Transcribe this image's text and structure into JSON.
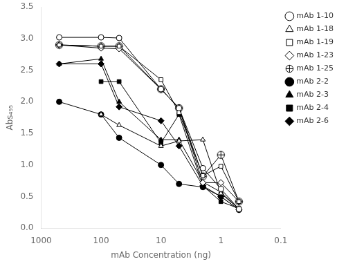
{
  "chart_data": {
    "type": "line",
    "xlabel": "mAb Concentration (ng)",
    "ylabel": "Abs₄₉₅",
    "log": "x",
    "xlim": [
      1000,
      0.1
    ],
    "xticks": [
      1000,
      100,
      10,
      1,
      0.1
    ],
    "ylim": [
      0,
      3.5
    ],
    "yticks": [
      {
        "value": 0,
        "label": "0.0"
      },
      0.5,
      {
        "value": 1.0,
        "label": "1.0"
      },
      1.5,
      {
        "value": 2.0,
        "label": "2.0"
      },
      2.5,
      {
        "value": 3.0,
        "label": "3.0"
      },
      3.5
    ],
    "grid": false,
    "legend": "upper right",
    "series": [
      {
        "name": "mAb 1-10",
        "color": "#000000",
        "marker": "circle_open",
        "x": [
          500,
          100,
          50,
          10,
          5,
          2,
          1,
          0.5
        ],
        "values": [
          3.02,
          3.02,
          3.01,
          2.2,
          1.9,
          0.95,
          0.62,
          0.3
        ]
      },
      {
        "name": "mAb 1-18",
        "color": "#000000",
        "marker": "triangle_open",
        "x": [
          100,
          50,
          10,
          5,
          2,
          1,
          0.5
        ],
        "values": [
          1.8,
          1.63,
          1.3,
          1.38,
          1.4,
          0.55,
          0.3
        ]
      },
      {
        "name": "mAb 1-19",
        "color": "#000000",
        "marker": "square_open",
        "x": [
          500,
          100,
          50,
          10,
          5,
          2,
          1,
          0.5
        ],
        "values": [
          2.9,
          2.88,
          2.88,
          2.35,
          1.83,
          0.83,
          0.98,
          0.42
        ]
      },
      {
        "name": "mAb 1-23",
        "color": "#000000",
        "marker": "diamond_open",
        "x": [
          500,
          100,
          50,
          10,
          5,
          2,
          1,
          0.5
        ],
        "values": [
          2.9,
          2.85,
          2.84,
          2.2,
          1.9,
          0.72,
          0.72,
          0.42
        ]
      },
      {
        "name": "mAb 1-25",
        "color": "#000000",
        "marker": "oplus_open",
        "x": [
          500,
          100,
          50,
          10,
          5,
          2,
          1,
          0.5
        ],
        "values": [
          2.9,
          2.88,
          2.88,
          2.2,
          1.9,
          0.82,
          1.16,
          0.42
        ]
      },
      {
        "name": "mAb 2-2",
        "color": "#000000",
        "marker": "circle_filled",
        "x": [
          500,
          100,
          50,
          10,
          5,
          2,
          1,
          0.5
        ],
        "values": [
          2.0,
          1.8,
          1.43,
          1.0,
          0.7,
          0.65,
          0.5,
          0.29
        ]
      },
      {
        "name": "mAb 2-3",
        "color": "#000000",
        "marker": "triangle_filled",
        "x": [
          500,
          100,
          50,
          10,
          5,
          2,
          1,
          0.5
        ],
        "values": [
          2.6,
          2.68,
          2.0,
          1.4,
          1.4,
          0.73,
          0.57,
          0.31
        ]
      },
      {
        "name": "mAb 2-4",
        "color": "#000000",
        "marker": "square_filled",
        "x": [
          100,
          50,
          10,
          5,
          2,
          1,
          0.5
        ],
        "values": [
          2.32,
          2.32,
          1.35,
          1.8,
          0.67,
          0.42,
          0.31
        ]
      },
      {
        "name": "mAb 2-6",
        "color": "#000000",
        "marker": "diamond_filled",
        "x": [
          500,
          100,
          50,
          10,
          5,
          2,
          1,
          0.5
        ],
        "values": [
          2.6,
          2.6,
          1.92,
          1.7,
          1.3,
          0.67,
          0.5,
          0.29
        ]
      }
    ]
  }
}
